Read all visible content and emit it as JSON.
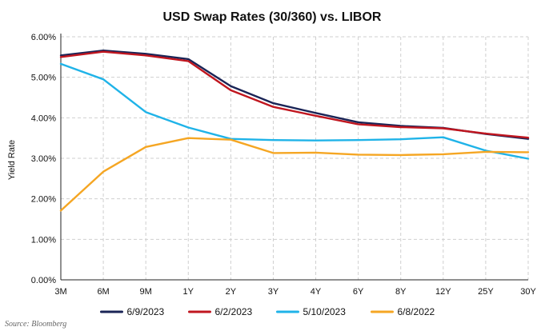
{
  "chart_data": {
    "type": "line",
    "title": "USD Swap Rates (30/360) vs. LIBOR",
    "xlabel": "",
    "ylabel": "Yield Rate",
    "categories": [
      "3M",
      "6M",
      "9M",
      "1Y",
      "2Y",
      "3Y",
      "4Y",
      "6Y",
      "8Y",
      "12Y",
      "25Y",
      "30Y"
    ],
    "ylim": [
      0,
      6
    ],
    "y_ticks": [
      0,
      1,
      2,
      3,
      4,
      5,
      6
    ],
    "y_tick_labels": [
      "0.00%",
      "1.00%",
      "2.00%",
      "3.00%",
      "4.00%",
      "5.00%",
      "6.00%"
    ],
    "grid": true,
    "legend_position": "bottom",
    "series": [
      {
        "name": "6/9/2023",
        "color": "#1a2456",
        "values": [
          5.54,
          5.66,
          5.58,
          5.45,
          4.78,
          4.36,
          4.12,
          3.89,
          3.8,
          3.75,
          3.6,
          3.48
        ]
      },
      {
        "name": "6/2/2023",
        "color": "#c0161f",
        "values": [
          5.5,
          5.63,
          5.54,
          5.4,
          4.68,
          4.27,
          4.05,
          3.84,
          3.77,
          3.74,
          3.61,
          3.51
        ]
      },
      {
        "name": "5/10/2023",
        "color": "#1fb3e8",
        "values": [
          5.33,
          4.95,
          4.14,
          3.76,
          3.48,
          3.45,
          3.44,
          3.45,
          3.47,
          3.52,
          3.19,
          2.99
        ]
      },
      {
        "name": "6/8/2022",
        "color": "#f5a623",
        "values": [
          1.71,
          2.67,
          3.28,
          3.5,
          3.46,
          3.13,
          3.14,
          3.09,
          3.08,
          3.1,
          3.16,
          3.15
        ]
      }
    ],
    "source": "Source: Bloomberg"
  }
}
